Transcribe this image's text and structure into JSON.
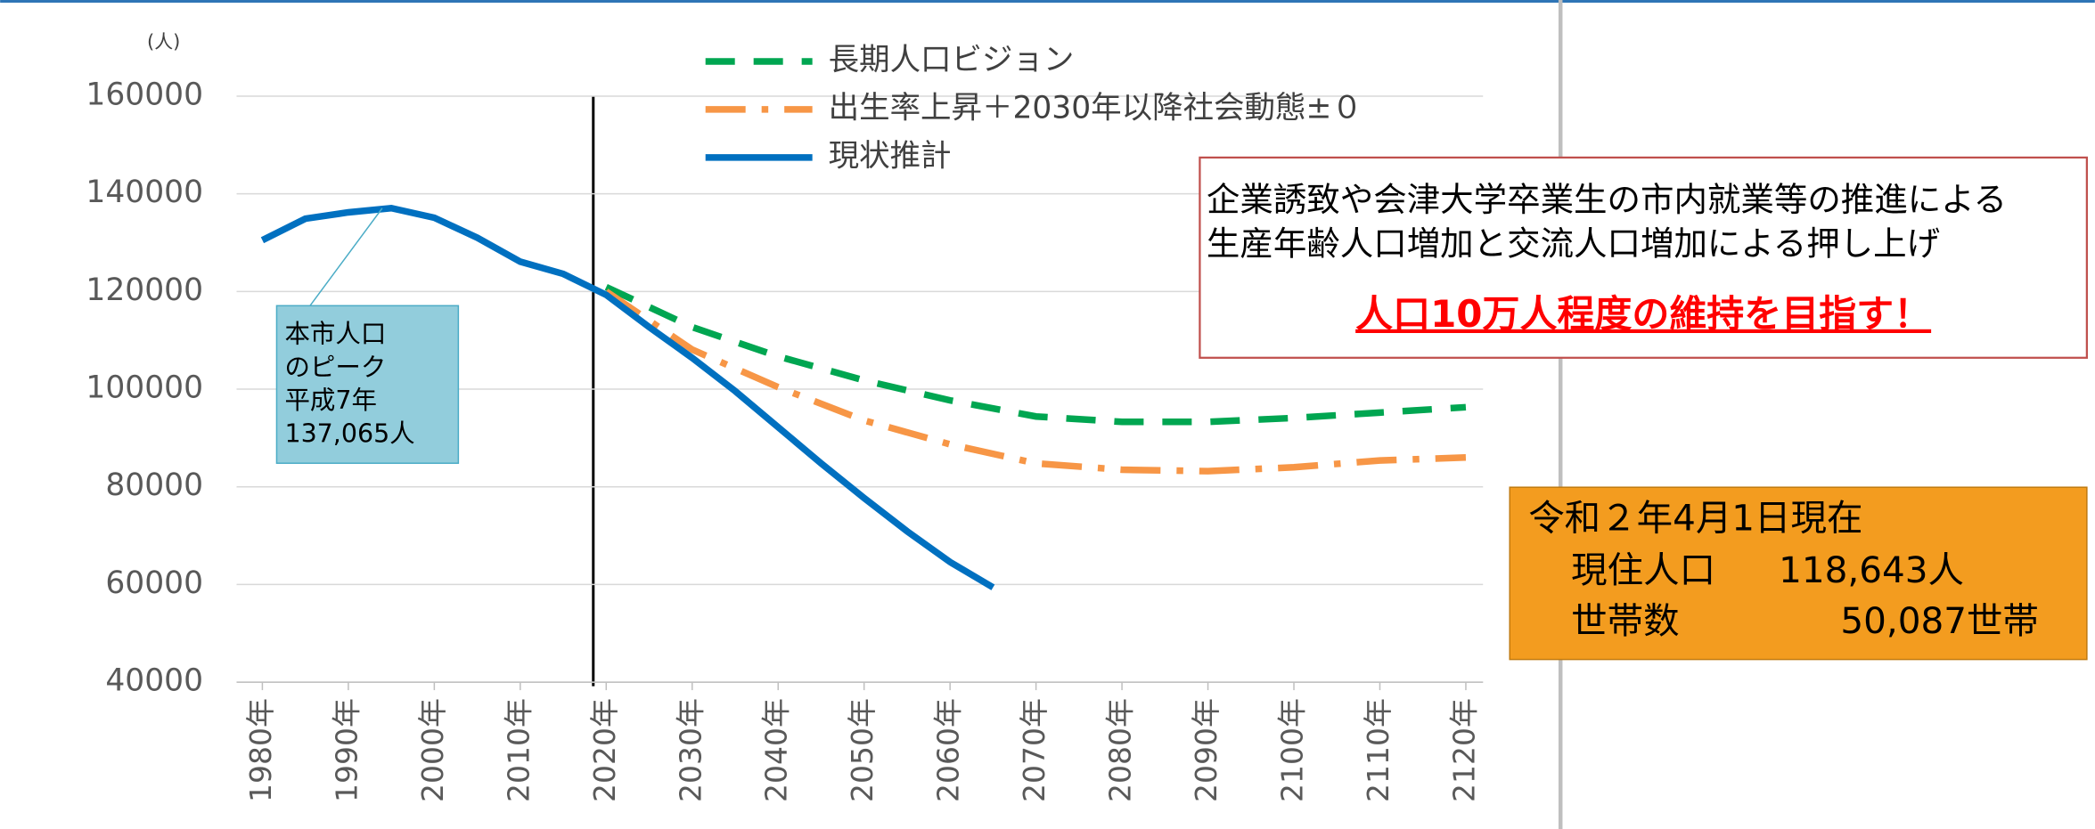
{
  "chart_data": {
    "type": "line",
    "y_unit": "(人)",
    "xlim": [
      1977,
      2122
    ],
    "xticks": [
      {
        "value": 1980,
        "label": "1980年"
      },
      {
        "value": 1990,
        "label": "1990年"
      },
      {
        "value": 2000,
        "label": "2000年"
      },
      {
        "value": 2010,
        "label": "2010年"
      },
      {
        "value": 2020,
        "label": "2020年"
      },
      {
        "value": 2030,
        "label": "2030年"
      },
      {
        "value": 2040,
        "label": "2040年"
      },
      {
        "value": 2050,
        "label": "2050年"
      },
      {
        "value": 2060,
        "label": "2060年"
      },
      {
        "value": 2070,
        "label": "2070年"
      },
      {
        "value": 2080,
        "label": "2080年"
      },
      {
        "value": 2090,
        "label": "2090年"
      },
      {
        "value": 2100,
        "label": "2100年"
      },
      {
        "value": 2110,
        "label": "2110年"
      },
      {
        "value": 2120,
        "label": "2120年"
      }
    ],
    "ylim": [
      40000,
      160000
    ],
    "yticks": [
      40000,
      60000,
      80000,
      100000,
      120000,
      140000,
      160000
    ],
    "grid": true,
    "series": [
      {
        "name": "長期人口ビジョン",
        "color": "#00a651",
        "style": "dashed",
        "x": [
          2020,
          2030,
          2040,
          2050,
          2060,
          2070,
          2080,
          2090,
          2100,
          2110,
          2120
        ],
        "values": [
          120900,
          112700,
          106700,
          101800,
          97700,
          94400,
          93300,
          93300,
          94100,
          95200,
          96300
        ]
      },
      {
        "name": "出生率上昇＋2030年以降社会動態±０",
        "color": "#f79646",
        "style": "dashdot",
        "x": [
          2020,
          2030,
          2040,
          2050,
          2060,
          2070,
          2080,
          2090,
          2100,
          2110,
          2120
        ],
        "values": [
          120000,
          108100,
          100400,
          93600,
          88700,
          84800,
          83500,
          83200,
          84000,
          85400,
          86000
        ]
      },
      {
        "name": "現状推計",
        "color": "#0070c0",
        "style": "solid",
        "x": [
          1980,
          1985,
          1990,
          1995,
          2000,
          2005,
          2010,
          2015,
          2020,
          2025,
          2030,
          2035,
          2040,
          2045,
          2050,
          2055,
          2060,
          2065
        ],
        "values": [
          130500,
          134900,
          136200,
          137065,
          135100,
          131000,
          126100,
          123600,
          119300,
          112700,
          106400,
          99600,
          92200,
          84800,
          77700,
          70900,
          64600,
          59400
        ]
      }
    ],
    "peak_note": [
      "本市人口",
      "のピーク",
      "平成7年",
      "137,065人"
    ],
    "policy_note": {
      "lines": [
        "企業誘致や会津大学卒業生の市内就業等の推進による",
        "生産年齢人口増加と交流人口増加による押し上げ"
      ],
      "highlight": "人口10万人程度の維持を目指す！"
    },
    "status_note": {
      "heading": "令和２年4月1日現在",
      "rows": [
        [
          "現住人口",
          "118,643人"
        ],
        [
          "世帯数",
          "50,087世帯"
        ]
      ]
    }
  }
}
